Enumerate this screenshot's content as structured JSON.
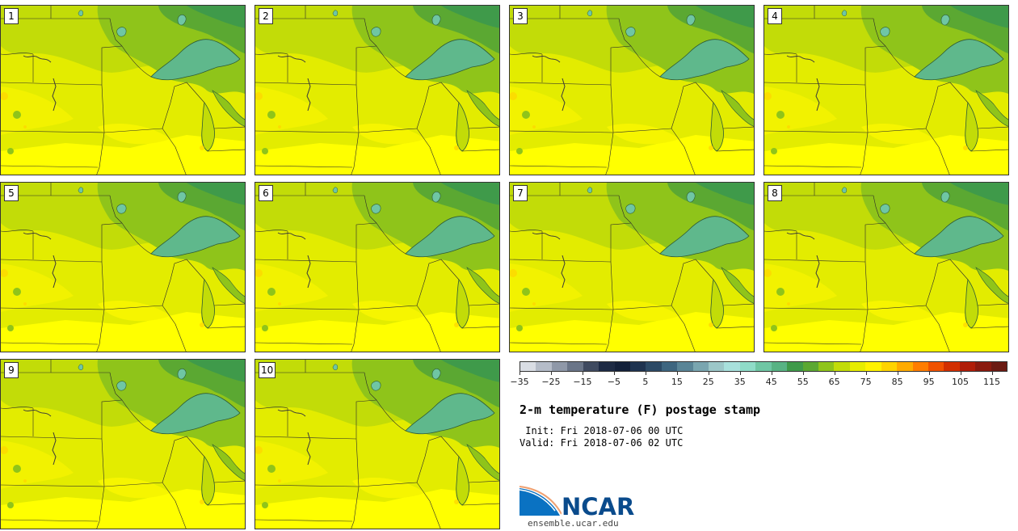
{
  "stamps": [
    {
      "member": "1"
    },
    {
      "member": "2"
    },
    {
      "member": "3"
    },
    {
      "member": "4"
    },
    {
      "member": "5"
    },
    {
      "member": "6"
    },
    {
      "member": "7"
    },
    {
      "member": "8"
    },
    {
      "member": "9"
    },
    {
      "member": "10"
    }
  ],
  "colorbar": {
    "colors": [
      "#d9dde4",
      "#b5bcc8",
      "#8f98a8",
      "#6a7588",
      "#3f4a60",
      "#1d2a44",
      "#13203a",
      "#1e3350",
      "#2c4a66",
      "#3e6680",
      "#5a8597",
      "#7aa6b0",
      "#9cc7c8",
      "#a8e0dc",
      "#8fdcc8",
      "#6fc6a4",
      "#58b384",
      "#3f9a4a",
      "#5ba832",
      "#8fc41a",
      "#c2dc08",
      "#e6ec00",
      "#fff200",
      "#ffd400",
      "#ffab00",
      "#ff7d00",
      "#f05200",
      "#d22f00",
      "#b01d08",
      "#8a1a0e",
      "#6b1a12"
    ],
    "min": -35,
    "max": 120,
    "ticks": [
      -35,
      -25,
      -15,
      -5,
      5,
      15,
      25,
      35,
      45,
      55,
      65,
      75,
      85,
      95,
      105,
      115
    ],
    "tick_labels": [
      "−35",
      "−25",
      "−15",
      "−5",
      "5",
      "15",
      "25",
      "35",
      "45",
      "55",
      "65",
      "75",
      "85",
      "95",
      "105",
      "115"
    ]
  },
  "title": "2-m temperature (F) postage stamp",
  "init": " Init: Fri 2018-07-06 00 UTC",
  "valid": "Valid: Fri 2018-07-06 02 UTC",
  "logo": {
    "name": "NCAR",
    "url": "ensemble.ucar.edu"
  },
  "palette": {
    "hot": "#ffff00",
    "warm": "#e3ec00",
    "mild": "#c2dc08",
    "cool": "#8fc41a",
    "cold": "#5ba832",
    "lake": "#5fb88c"
  }
}
